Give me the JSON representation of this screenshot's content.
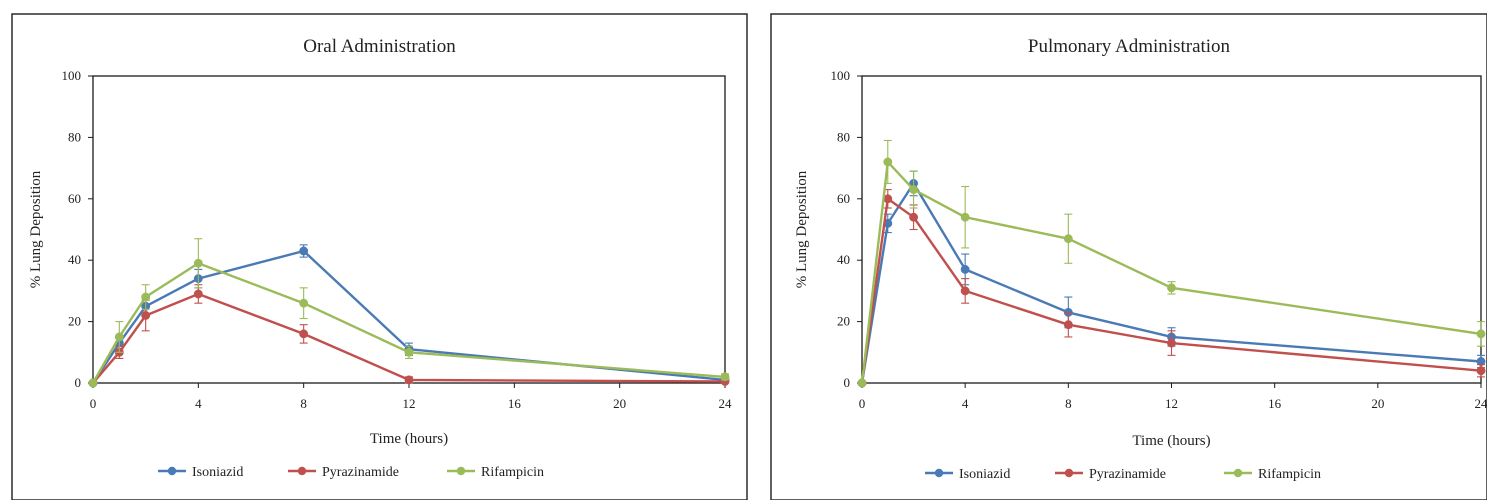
{
  "chart_data": [
    {
      "type": "line",
      "title": "Oral Administration",
      "xlabel": "Time (hours)",
      "ylabel": "% Lung Deposition",
      "xlim": [
        0,
        24
      ],
      "ylim": [
        0,
        100
      ],
      "xticks": [
        0,
        4,
        8,
        12,
        16,
        20,
        24
      ],
      "yticks": [
        0,
        20,
        40,
        60,
        80,
        100
      ],
      "grid": false,
      "legend": "bottom",
      "series": [
        {
          "name": "Isoniazid",
          "color": "#4a7ab5",
          "x": [
            0,
            1,
            2,
            4,
            8,
            12,
            24
          ],
          "y": [
            0,
            13,
            25,
            34,
            43,
            11,
            1
          ],
          "err": [
            0,
            2,
            3,
            3,
            2,
            2,
            1
          ]
        },
        {
          "name": "Pyrazinamide",
          "color": "#c0504d",
          "x": [
            0,
            1,
            2,
            4,
            8,
            12,
            24
          ],
          "y": [
            0,
            10,
            22,
            29,
            16,
            1,
            0.5
          ],
          "err": [
            0,
            2,
            5,
            3,
            3,
            1,
            0.5
          ]
        },
        {
          "name": "Rifampicin",
          "color": "#9bbb59",
          "x": [
            0,
            1,
            2,
            4,
            8,
            12,
            24
          ],
          "y": [
            0,
            15,
            28,
            39,
            26,
            10,
            2
          ],
          "err": [
            0,
            5,
            4,
            8,
            5,
            2,
            1
          ]
        }
      ]
    },
    {
      "type": "line",
      "title": "Pulmonary Administration",
      "xlabel": "Time (hours)",
      "ylabel": "% Lung Deposition",
      "xlim": [
        0,
        24
      ],
      "ylim": [
        0,
        100
      ],
      "xticks": [
        0,
        4,
        8,
        12,
        16,
        20,
        24
      ],
      "yticks": [
        0,
        20,
        40,
        60,
        80,
        100
      ],
      "grid": false,
      "legend": "bottom",
      "series": [
        {
          "name": "Isoniazid",
          "color": "#4a7ab5",
          "x": [
            0,
            1,
            2,
            4,
            8,
            12,
            24
          ],
          "y": [
            0,
            52,
            65,
            37,
            23,
            15,
            7
          ],
          "err": [
            0,
            3,
            4,
            5,
            5,
            3,
            2
          ]
        },
        {
          "name": "Pyrazinamide",
          "color": "#c0504d",
          "x": [
            0,
            1,
            2,
            4,
            8,
            12,
            24
          ],
          "y": [
            0,
            60,
            54,
            30,
            19,
            13,
            4
          ],
          "err": [
            0,
            3,
            4,
            4,
            4,
            4,
            2
          ]
        },
        {
          "name": "Rifampicin",
          "color": "#9bbb59",
          "x": [
            0,
            1,
            2,
            4,
            8,
            12,
            24
          ],
          "y": [
            0,
            72,
            63,
            54,
            47,
            31,
            16
          ],
          "err": [
            0,
            7,
            6,
            10,
            8,
            2,
            4
          ]
        }
      ]
    }
  ]
}
